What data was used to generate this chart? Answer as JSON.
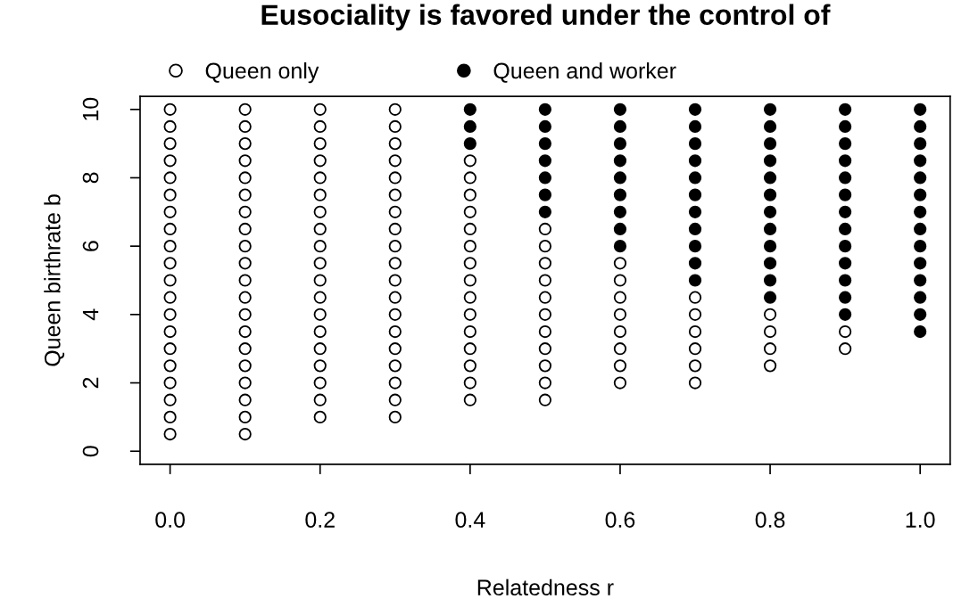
{
  "chart_data": {
    "type": "scatter",
    "title": "Eusociality is favored under the control of",
    "xlabel": "Relatedness r",
    "ylabel": "Queen birthrate b",
    "xlim": [
      -0.04,
      1.04
    ],
    "ylim": [
      -0.38,
      10.38
    ],
    "xticks": [
      {
        "value": 0,
        "label": "0.0"
      },
      0.2,
      0.4,
      0.6,
      0.8,
      {
        "value": 1,
        "label": "1.0"
      }
    ],
    "yticks": [
      0,
      2,
      4,
      6,
      8,
      10
    ],
    "legend": "top",
    "grid": false,
    "marker": "circle",
    "series": [
      {
        "name": "Queen only",
        "color": "#ffffff",
        "x": [
          0,
          0,
          0,
          0,
          0,
          0,
          0,
          0,
          0,
          0,
          0,
          0,
          0,
          0,
          0,
          0,
          0,
          0,
          0,
          0,
          0.1,
          0.1,
          0.1,
          0.1,
          0.1,
          0.1,
          0.1,
          0.1,
          0.1,
          0.1,
          0.1,
          0.1,
          0.1,
          0.1,
          0.1,
          0.1,
          0.1,
          0.1,
          0.1,
          0.1,
          0.2,
          0.2,
          0.2,
          0.2,
          0.2,
          0.2,
          0.2,
          0.2,
          0.2,
          0.2,
          0.2,
          0.2,
          0.2,
          0.2,
          0.2,
          0.2,
          0.2,
          0.2,
          0.2,
          0.3,
          0.3,
          0.3,
          0.3,
          0.3,
          0.3,
          0.3,
          0.3,
          0.3,
          0.3,
          0.3,
          0.3,
          0.3,
          0.3,
          0.3,
          0.3,
          0.3,
          0.3,
          0.3,
          0.4,
          0.4,
          0.4,
          0.4,
          0.4,
          0.4,
          0.4,
          0.4,
          0.4,
          0.4,
          0.4,
          0.4,
          0.4,
          0.4,
          0.4,
          0.5,
          0.5,
          0.5,
          0.5,
          0.5,
          0.5,
          0.5,
          0.5,
          0.5,
          0.5,
          0.5,
          0.6,
          0.6,
          0.6,
          0.6,
          0.6,
          0.6,
          0.6,
          0.6,
          0.7,
          0.7,
          0.7,
          0.7,
          0.7,
          0.7,
          0.8,
          0.8,
          0.8,
          0.8,
          0.9,
          0.9
        ],
        "values": [
          0.5,
          1,
          1.5,
          2,
          2.5,
          3,
          3.5,
          4,
          4.5,
          5,
          5.5,
          6,
          6.5,
          7,
          7.5,
          8,
          8.5,
          9,
          9.5,
          10,
          0.5,
          1,
          1.5,
          2,
          2.5,
          3,
          3.5,
          4,
          4.5,
          5,
          5.5,
          6,
          6.5,
          7,
          7.5,
          8,
          8.5,
          9,
          9.5,
          10,
          1,
          1.5,
          2,
          2.5,
          3,
          3.5,
          4,
          4.5,
          5,
          5.5,
          6,
          6.5,
          7,
          7.5,
          8,
          8.5,
          9,
          9.5,
          10,
          1,
          1.5,
          2,
          2.5,
          3,
          3.5,
          4,
          4.5,
          5,
          5.5,
          6,
          6.5,
          7,
          7.5,
          8,
          8.5,
          9,
          9.5,
          10,
          1.5,
          2,
          2.5,
          3,
          3.5,
          4,
          4.5,
          5,
          5.5,
          6,
          6.5,
          7,
          7.5,
          8,
          8.5,
          1.5,
          2,
          2.5,
          3,
          3.5,
          4,
          4.5,
          5,
          5.5,
          6,
          6.5,
          2,
          2.5,
          3,
          3.5,
          4,
          4.5,
          5,
          5.5,
          2,
          2.5,
          3,
          3.5,
          4,
          4.5,
          2.5,
          3,
          3.5,
          4,
          3,
          3.5
        ]
      },
      {
        "name": "Queen and worker",
        "color": "#000000",
        "x": [
          0.4,
          0.4,
          0.4,
          0.5,
          0.5,
          0.5,
          0.5,
          0.5,
          0.5,
          0.5,
          0.6,
          0.6,
          0.6,
          0.6,
          0.6,
          0.6,
          0.6,
          0.6,
          0.6,
          0.7,
          0.7,
          0.7,
          0.7,
          0.7,
          0.7,
          0.7,
          0.7,
          0.7,
          0.7,
          0.7,
          0.8,
          0.8,
          0.8,
          0.8,
          0.8,
          0.8,
          0.8,
          0.8,
          0.8,
          0.8,
          0.8,
          0.8,
          0.9,
          0.9,
          0.9,
          0.9,
          0.9,
          0.9,
          0.9,
          0.9,
          0.9,
          0.9,
          0.9,
          0.9,
          0.9,
          1,
          1,
          1,
          1,
          1,
          1,
          1,
          1,
          1,
          1,
          1,
          1,
          1,
          1
        ],
        "values": [
          9,
          9.5,
          10,
          7,
          7.5,
          8,
          8.5,
          9,
          9.5,
          10,
          6,
          6.5,
          7,
          7.5,
          8,
          8.5,
          9,
          9.5,
          10,
          5,
          5.5,
          6,
          6.5,
          7,
          7.5,
          8,
          8.5,
          9,
          9.5,
          10,
          4.5,
          5,
          5.5,
          6,
          6.5,
          7,
          7.5,
          8,
          8.5,
          9,
          9.5,
          10,
          4,
          4.5,
          5,
          5.5,
          6,
          6.5,
          7,
          7.5,
          8,
          8.5,
          9,
          9.5,
          10,
          3.5,
          4,
          4.5,
          5,
          5.5,
          6,
          6.5,
          7,
          7.5,
          8,
          8.5,
          9,
          9.5,
          10
        ]
      }
    ]
  }
}
